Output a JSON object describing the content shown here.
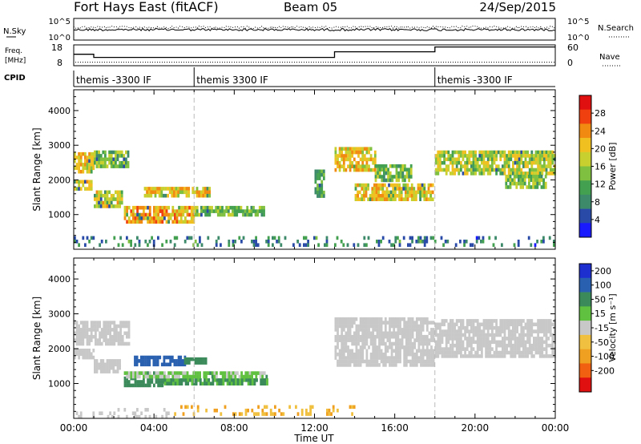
{
  "header": {
    "station": "Fort Hays East (fitACF)",
    "beam": "Beam 05",
    "date": "24/Sep/2015"
  },
  "noise_panel": {
    "left_label": "N.Sky",
    "right_label": "N.Search",
    "ticks_left": [
      "10^5",
      "10^0"
    ],
    "ticks_right": [
      "10^5",
      "10^0"
    ]
  },
  "freq_panel": {
    "left_label_1": "Freq.",
    "left_label_2": "[MHz]",
    "right_label": "Nave",
    "ticks_left": [
      "18",
      "8"
    ],
    "ticks_right": [
      "60",
      "0"
    ],
    "freq_steps": [
      {
        "t0": 0.0,
        "t1": 1.0,
        "mhz": 13.5
      },
      {
        "t0": 1.0,
        "t1": 13.0,
        "mhz": 12.0
      },
      {
        "t0": 13.0,
        "t1": 18.0,
        "mhz": 14.7
      },
      {
        "t0": 18.0,
        "t1": 24.0,
        "mhz": 17.0
      }
    ],
    "nave_level": 10
  },
  "cpid_panel": {
    "label": "CPID",
    "segments": [
      {
        "start": 0.0,
        "label": "themis -3300 IF"
      },
      {
        "start": 6.0,
        "label": "themis 3300 IF"
      },
      {
        "start": 18.0,
        "label": "themis -3300 IF"
      }
    ]
  },
  "chart_data": [
    {
      "type": "heatmap",
      "quantity": "power",
      "ylabel": "Slant Range [km]",
      "xlim": [
        0,
        24
      ],
      "ylim": [
        0,
        4600
      ],
      "yticks": [
        "1000",
        "2000",
        "3000",
        "4000"
      ],
      "colorbar": {
        "label": "Power [dB]",
        "ticks": [
          "4",
          "8",
          "12",
          "16",
          "20",
          "24",
          "28"
        ],
        "range": [
          0,
          32
        ]
      },
      "regions": [
        {
          "t0": 0.0,
          "t1": 1.0,
          "r0": 2200,
          "r1": 2800,
          "level": 20
        },
        {
          "t0": 0.0,
          "t1": 0.9,
          "r0": 1700,
          "r1": 2000,
          "level": 20
        },
        {
          "t0": 1.0,
          "t1": 2.4,
          "r0": 1250,
          "r1": 1700,
          "level": 18
        },
        {
          "t0": 1.0,
          "t1": 2.7,
          "r0": 2400,
          "r1": 2850,
          "level": 14
        },
        {
          "t0": 2.5,
          "t1": 6.0,
          "r0": 800,
          "r1": 1250,
          "level": 22
        },
        {
          "t0": 6.0,
          "t1": 9.5,
          "r0": 950,
          "r1": 1250,
          "level": 14
        },
        {
          "t0": 3.5,
          "t1": 6.8,
          "r0": 1500,
          "r1": 1800,
          "level": 20
        },
        {
          "t0": 13.0,
          "t1": 15.0,
          "r0": 2300,
          "r1": 2950,
          "level": 20
        },
        {
          "t0": 14.0,
          "t1": 17.9,
          "r0": 1450,
          "r1": 1900,
          "level": 20
        },
        {
          "t0": 15.0,
          "t1": 16.8,
          "r0": 2000,
          "r1": 2450,
          "level": 14
        },
        {
          "t0": 18.0,
          "t1": 24.0,
          "r0": 2200,
          "r1": 2850,
          "level": 17
        },
        {
          "t0": 21.5,
          "t1": 23.5,
          "r0": 1800,
          "r1": 2150,
          "level": 14
        },
        {
          "t0": 12.0,
          "t1": 12.5,
          "r0": 1500,
          "r1": 2300,
          "level": 10
        },
        {
          "t0": 0.0,
          "t1": 24.0,
          "r0": 80,
          "r1": 380,
          "level": 8
        }
      ]
    },
    {
      "type": "heatmap",
      "quantity": "velocity",
      "xlabel": "Time UT",
      "ylabel": "Slant Range [km]",
      "xlim": [
        0,
        24
      ],
      "ylim": [
        0,
        4600
      ],
      "xticks": [
        "00:00",
        "04:00",
        "08:00",
        "12:00",
        "16:00",
        "20:00",
        "00:00"
      ],
      "yticks": [
        "1000",
        "2000",
        "3000",
        "4000"
      ],
      "colorbar": {
        "label": "Velocity [m s⁻¹]",
        "ticks": [
          "200",
          "100",
          "50",
          "15",
          "-15",
          "-50",
          "-100",
          "-200"
        ]
      },
      "regions": [
        {
          "t0": 0.0,
          "t1": 2.7,
          "r0": 2100,
          "r1": 2800,
          "level": 0
        },
        {
          "t0": 0.0,
          "t1": 1.0,
          "r0": 1700,
          "r1": 2000,
          "level": 0
        },
        {
          "t0": 1.0,
          "t1": 2.3,
          "r0": 1300,
          "r1": 1700,
          "level": 0
        },
        {
          "t0": 2.5,
          "t1": 4.5,
          "r0": 950,
          "r1": 1200,
          "level": 55
        },
        {
          "t0": 4.5,
          "t1": 9.6,
          "r0": 950,
          "r1": 1150,
          "level": 40
        },
        {
          "t0": 3.0,
          "t1": 5.5,
          "r0": 1550,
          "r1": 1800,
          "level": 130
        },
        {
          "t0": 5.5,
          "t1": 6.6,
          "r0": 1600,
          "r1": 1750,
          "level": 60
        },
        {
          "t0": 2.5,
          "t1": 9.6,
          "r0": 1200,
          "r1": 1350,
          "level": 20
        },
        {
          "t0": 13.0,
          "t1": 17.9,
          "r0": 1500,
          "r1": 2900,
          "level": 0
        },
        {
          "t0": 18.0,
          "t1": 24.0,
          "r0": 1800,
          "r1": 2850,
          "level": 0
        },
        {
          "t0": 5.0,
          "t1": 14.0,
          "r0": 80,
          "r1": 380,
          "level": -30
        },
        {
          "t0": 0.0,
          "t1": 5.0,
          "r0": 80,
          "r1": 300,
          "level": 0
        }
      ]
    }
  ],
  "colors": {
    "power": [
      "#1a1aff",
      "#2a4aa8",
      "#3d8a6a",
      "#43a050",
      "#80c040",
      "#c8d030",
      "#f0c020",
      "#f08a10",
      "#f04010",
      "#e01010"
    ],
    "velocity_pos": [
      "#1e2fd0",
      "#2a60b0",
      "#3a8a5a",
      "#60c040"
    ],
    "velocity_neutral": "#c8c8c8",
    "velocity_neg": [
      "#f0c040",
      "#f0a020",
      "#f06010",
      "#e01010"
    ]
  }
}
